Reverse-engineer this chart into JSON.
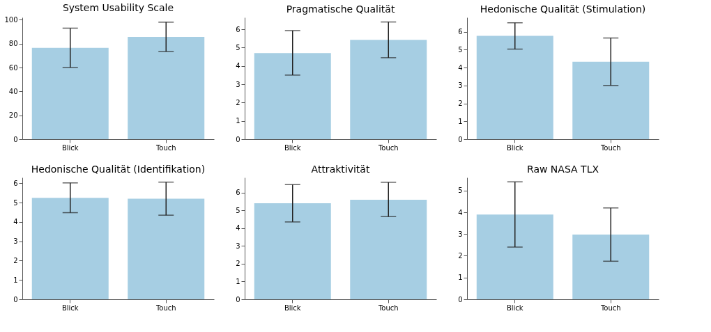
{
  "chart_data": [
    {
      "type": "bar",
      "title": "System Usability Scale",
      "categories": [
        "Blick",
        "Touch"
      ],
      "values": [
        76.5,
        85.7
      ],
      "errors": [
        [
          60,
          93
        ],
        [
          73.4,
          98
        ]
      ],
      "color": "#a6cee3",
      "ylim": [
        0,
        102
      ],
      "yticks": [
        0,
        20,
        40,
        60,
        80,
        100
      ],
      "grid": false
    },
    {
      "type": "bar",
      "title": "Pragmatische Qualität",
      "categories": [
        "Blick",
        "Touch"
      ],
      "values": [
        4.7,
        5.42
      ],
      "errors": [
        [
          3.5,
          5.93
        ],
        [
          4.45,
          6.4
        ]
      ],
      "color": "#a6cee3",
      "ylim": [
        0,
        6.65
      ],
      "yticks": [
        0,
        1,
        2,
        3,
        4,
        5,
        6
      ],
      "grid": false
    },
    {
      "type": "bar",
      "title": "Hedonische Qualität (Stimulation)",
      "categories": [
        "Blick",
        "Touch"
      ],
      "values": [
        5.77,
        4.32
      ],
      "errors": [
        [
          5.03,
          6.5
        ],
        [
          3.0,
          5.65
        ]
      ],
      "color": "#a6cee3",
      "ylim": [
        0,
        6.8
      ],
      "yticks": [
        0,
        1,
        2,
        3,
        4,
        5,
        6
      ],
      "grid": false
    },
    {
      "type": "bar",
      "title": "Hedonische Qualität (Identifikation)",
      "categories": [
        "Blick",
        "Touch"
      ],
      "values": [
        5.25,
        5.2
      ],
      "errors": [
        [
          4.48,
          6.02
        ],
        [
          4.35,
          6.06
        ]
      ],
      "color": "#a6cee3",
      "ylim": [
        0,
        6.3
      ],
      "yticks": [
        0,
        1,
        2,
        3,
        4,
        5,
        6
      ],
      "grid": false
    },
    {
      "type": "bar",
      "title": "Attraktivität",
      "categories": [
        "Blick",
        "Touch"
      ],
      "values": [
        5.4,
        5.6
      ],
      "errors": [
        [
          4.35,
          6.45
        ],
        [
          4.65,
          6.58
        ]
      ],
      "color": "#a6cee3",
      "ylim": [
        0,
        6.85
      ],
      "yticks": [
        0,
        1,
        2,
        3,
        4,
        5,
        6
      ],
      "grid": false
    },
    {
      "type": "bar",
      "title": "Raw NASA TLX",
      "categories": [
        "Blick",
        "Touch"
      ],
      "values": [
        3.9,
        2.98
      ],
      "errors": [
        [
          2.4,
          5.4
        ],
        [
          1.75,
          4.2
        ]
      ],
      "color": "#a6cee3",
      "ylim": [
        0,
        5.6
      ],
      "yticks": [
        0,
        1,
        2,
        3,
        4,
        5
      ],
      "grid": false
    }
  ]
}
